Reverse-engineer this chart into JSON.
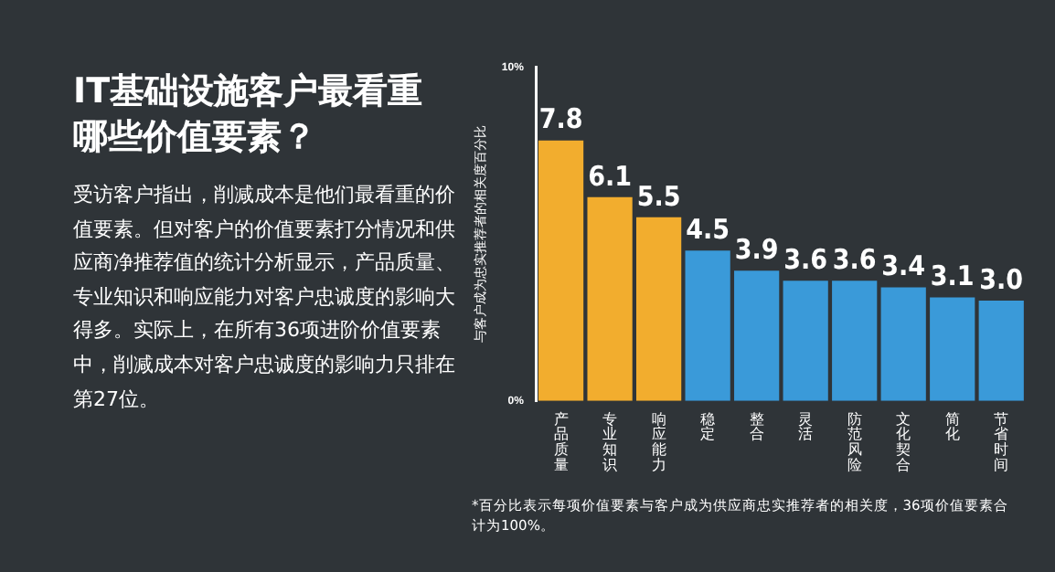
{
  "chart_data": {
    "type": "bar",
    "title": "IT基础设施客户最看重哪些价值要素？",
    "subtitle": "受访客户指出，削减成本是他们最看重的价值要素。但对客户的价值要素打分情况和供应商净推荐值的统计分析显示，产品质量、专业知识和响应能力对客户忠诚度的影响大得多。实际上，在所有36项进阶价值要素中，削减成本对客户忠诚度的影响力只排在第27位。",
    "ylabel": "与客户成为忠实推荐者的相关度百分比",
    "categories": [
      "产品质量",
      "专业知识",
      "响应能力",
      "稳定",
      "整合",
      "灵活",
      "防范风险",
      "文化契合",
      "简化",
      "节省时间"
    ],
    "values": [
      7.8,
      6.1,
      5.5,
      4.5,
      3.9,
      3.6,
      3.6,
      3.4,
      3.1,
      3.0
    ],
    "value_labels": [
      "7.8",
      "6.1",
      "5.5",
      "4.5",
      "3.9",
      "3.6",
      "3.6",
      "3.4",
      "3.1",
      "3.0"
    ],
    "colors": [
      "#f2ad2e",
      "#f2ad2e",
      "#f2ad2e",
      "#3a9ad9",
      "#3a9ad9",
      "#3a9ad9",
      "#3a9ad9",
      "#3a9ad9",
      "#3a9ad9",
      "#3a9ad9"
    ],
    "ylim": [
      0,
      10
    ],
    "yticks": [
      {
        "value": 0,
        "label": "0%"
      },
      {
        "value": 10,
        "label": "10%"
      }
    ],
    "grid": false,
    "legend": false,
    "annotations": [
      "*百分比表示每项价值要素与客户成为供应商忠实推荐者的相关度，36项价值要素合计为100%。"
    ]
  }
}
